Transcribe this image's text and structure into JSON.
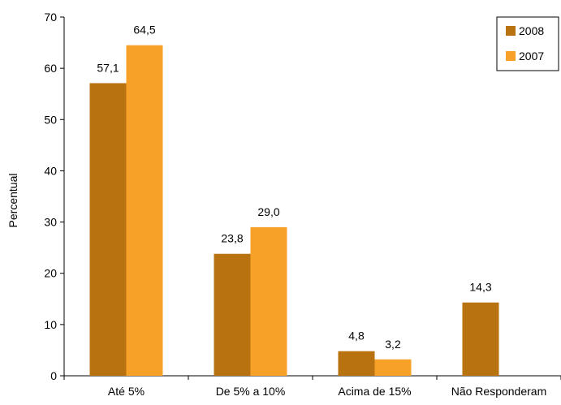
{
  "chart_data": {
    "type": "bar",
    "title": "",
    "xlabel": "",
    "ylabel": "Percentual",
    "ylim": [
      0,
      70
    ],
    "yticks": [
      0,
      10,
      20,
      30,
      40,
      50,
      60,
      70
    ],
    "categories": [
      "Até 5%",
      "De 5% a 10%",
      "Acima de 15%",
      "Não Responderam"
    ],
    "series": [
      {
        "name": "2008",
        "color": "#B8720F",
        "values": [
          57.1,
          23.8,
          4.8,
          14.3
        ],
        "labels": [
          "57,1",
          "23,8",
          "4,8",
          "14,3"
        ]
      },
      {
        "name": "2007",
        "color": "#F7A128",
        "values": [
          64.5,
          29.0,
          3.2,
          null
        ],
        "labels": [
          "64,5",
          "29,0",
          "3,2",
          ""
        ]
      }
    ],
    "grid": false,
    "legend": "top-right"
  }
}
